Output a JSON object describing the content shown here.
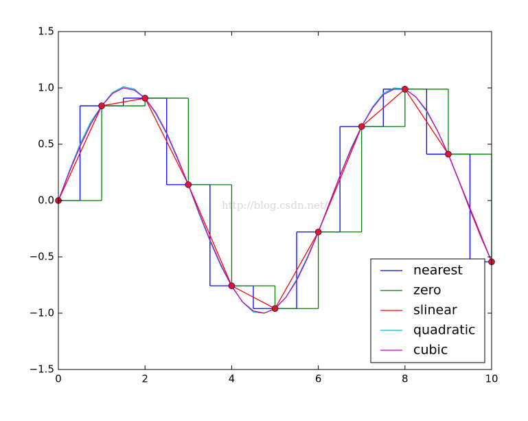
{
  "chart_data": {
    "type": "line",
    "xlim": [
      0,
      10
    ],
    "ylim": [
      -1.5,
      1.5
    ],
    "xticks": [
      0,
      2,
      4,
      6,
      8,
      10
    ],
    "yticks": [
      {
        "value": -1.5,
        "label": "−1.5"
      },
      {
        "value": -1.0,
        "label": "−1.0"
      },
      {
        "value": -0.5,
        "label": "−0.5"
      },
      {
        "value": 0,
        "label": "0.0"
      },
      {
        "value": 0.5,
        "label": "0.5"
      },
      {
        "value": 1.0,
        "label": "1.0"
      },
      {
        "value": 1.5,
        "label": "1.5"
      }
    ],
    "legend": "lower right",
    "watermark": "http://blog.csdn.net/",
    "series": [
      {
        "name": "nearest",
        "color": "#0000ff",
        "style": "steps-mid",
        "x": [
          0,
          1,
          2,
          3,
          4,
          5,
          6,
          7,
          8,
          9,
          10
        ],
        "values": [
          0,
          0.841,
          0.909,
          0.141,
          -0.757,
          -0.959,
          -0.279,
          0.657,
          0.989,
          0.412,
          -0.544
        ]
      },
      {
        "name": "zero",
        "color": "#008000",
        "style": "steps-post",
        "x": [
          0,
          1,
          2,
          3,
          4,
          5,
          6,
          7,
          8,
          9,
          10
        ],
        "values": [
          0,
          0.841,
          0.909,
          0.141,
          -0.757,
          -0.959,
          -0.279,
          0.657,
          0.989,
          0.412,
          -0.544
        ]
      },
      {
        "name": "slinear",
        "color": "#ff0000",
        "style": "line",
        "x": [
          0,
          1,
          2,
          3,
          4,
          5,
          6,
          7,
          8,
          9,
          10
        ],
        "values": [
          0,
          0.841,
          0.909,
          0.141,
          -0.757,
          -0.959,
          -0.279,
          0.657,
          0.989,
          0.412,
          -0.544
        ]
      },
      {
        "name": "quadratic",
        "color": "#00bfbf",
        "style": "line",
        "x": [
          0,
          0.25,
          0.5,
          0.75,
          1,
          1.25,
          1.5,
          1.75,
          2,
          2.25,
          2.5,
          2.75,
          3,
          3.25,
          3.5,
          3.75,
          4,
          4.25,
          4.5,
          4.75,
          5,
          5.25,
          5.5,
          5.75,
          6,
          6.25,
          6.5,
          6.75,
          7,
          7.25,
          7.5,
          7.75,
          8,
          8.25,
          8.5,
          8.75,
          9,
          9.25,
          9.5,
          9.75,
          10
        ],
        "values": [
          0,
          0.26,
          0.5,
          0.7,
          0.84,
          0.96,
          1.01,
          0.99,
          0.91,
          0.77,
          0.59,
          0.37,
          0.14,
          -0.12,
          -0.36,
          -0.58,
          -0.76,
          -0.9,
          -0.99,
          -1.0,
          -0.96,
          -0.86,
          -0.7,
          -0.5,
          -0.28,
          -0.03,
          0.22,
          0.46,
          0.66,
          0.83,
          0.95,
          1.0,
          0.99,
          0.92,
          0.79,
          0.62,
          0.41,
          0.17,
          -0.08,
          -0.32,
          -0.54
        ]
      },
      {
        "name": "cubic",
        "color": "#bf00bf",
        "style": "line",
        "x": [
          0,
          0.25,
          0.5,
          0.75,
          1,
          1.25,
          1.5,
          1.75,
          2,
          2.25,
          2.5,
          2.75,
          3,
          3.25,
          3.5,
          3.75,
          4,
          4.25,
          4.5,
          4.75,
          5,
          5.25,
          5.5,
          5.75,
          6,
          6.25,
          6.5,
          6.75,
          7,
          7.25,
          7.5,
          7.75,
          8,
          8.25,
          8.5,
          8.75,
          9,
          9.25,
          9.5,
          9.75,
          10
        ],
        "values": [
          0,
          0.25,
          0.48,
          0.68,
          0.84,
          0.95,
          1.0,
          0.98,
          0.91,
          0.78,
          0.6,
          0.38,
          0.14,
          -0.11,
          -0.35,
          -0.57,
          -0.76,
          -0.9,
          -0.98,
          -1.0,
          -0.96,
          -0.86,
          -0.71,
          -0.51,
          -0.28,
          -0.03,
          0.22,
          0.45,
          0.66,
          0.82,
          0.94,
          0.99,
          0.99,
          0.92,
          0.8,
          0.62,
          0.41,
          0.17,
          -0.08,
          -0.32,
          -0.54
        ]
      },
      {
        "color": "#dc143c",
        "style": "markers",
        "x": [
          0,
          1,
          2,
          3,
          4,
          5,
          6,
          7,
          8,
          9,
          10
        ],
        "values": [
          0,
          0.841,
          0.909,
          0.141,
          -0.757,
          -0.959,
          -0.279,
          0.657,
          0.989,
          0.412,
          -0.544
        ]
      }
    ]
  }
}
